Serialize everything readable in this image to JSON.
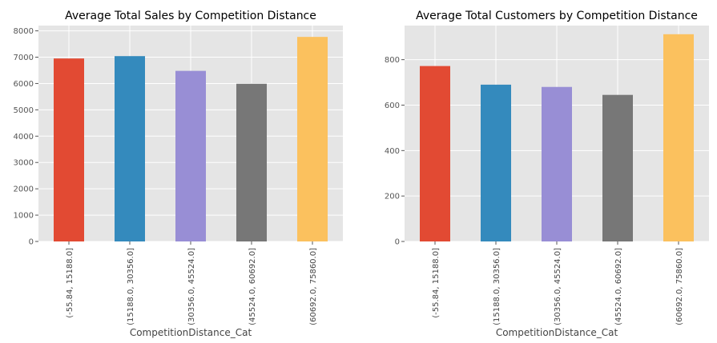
{
  "chart_data": [
    {
      "type": "bar",
      "title": "Average Total Sales by Competition Distance",
      "xlabel": "CompetitionDistance_Cat",
      "ylabel": "",
      "categories": [
        "(-55.84, 15188.0]",
        "(15188.0, 30356.0]",
        "(30356.0, 45524.0]",
        "(45524.0, 60692.0]",
        "(60692.0, 75860.0]"
      ],
      "values": [
        6950,
        7040,
        6480,
        5990,
        7770
      ],
      "ylim": [
        0,
        8200
      ],
      "yticks": [
        0,
        1000,
        2000,
        3000,
        4000,
        5000,
        6000,
        7000,
        8000
      ],
      "grid": true,
      "colors": [
        "#E24A33",
        "#348ABD",
        "#988ED5",
        "#777777",
        "#FBC15E"
      ]
    },
    {
      "type": "bar",
      "title": "Average Total Customers by Competition Distance",
      "xlabel": "CompetitionDistance_Cat",
      "ylabel": "",
      "categories": [
        "(-55.84, 15188.0]",
        "(15188.0, 30356.0]",
        "(30356.0, 45524.0]",
        "(45524.0, 60692.0]",
        "(60692.0, 75860.0]"
      ],
      "values": [
        772,
        690,
        680,
        645,
        912
      ],
      "ylim": [
        0,
        950
      ],
      "yticks": [
        0,
        200,
        400,
        600,
        800
      ],
      "grid": true,
      "colors": [
        "#E24A33",
        "#348ABD",
        "#988ED5",
        "#777777",
        "#FBC15E"
      ]
    }
  ]
}
